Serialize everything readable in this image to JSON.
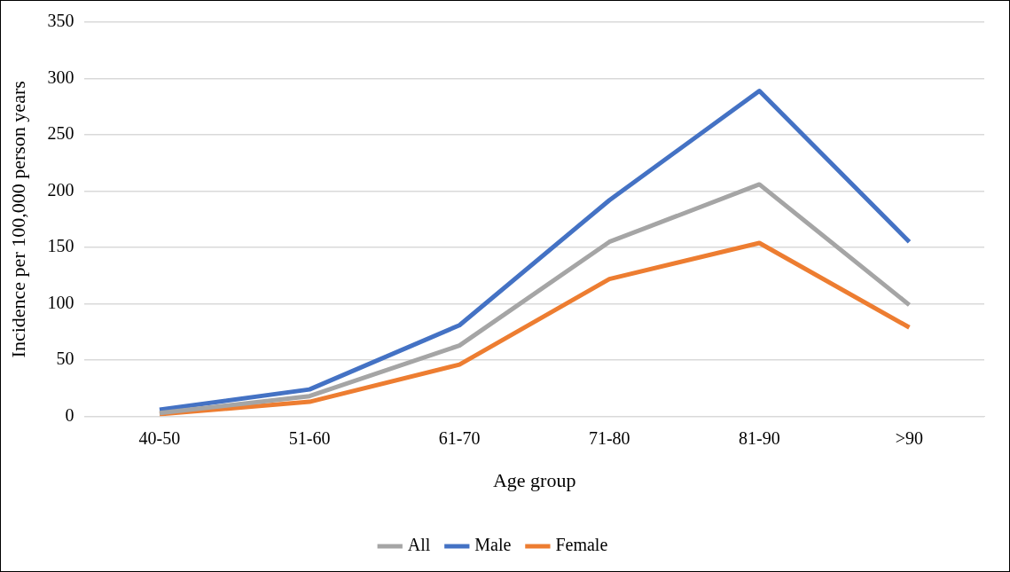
{
  "chart_data": {
    "type": "line",
    "xlabel": "Age group",
    "ylabel": "Incidence per 100,000 person years",
    "categories": [
      "40-50",
      "51-60",
      "61-70",
      "71-80",
      "81-90",
      ">90"
    ],
    "ylim": [
      0,
      350
    ],
    "yticks": [
      0,
      50,
      100,
      150,
      200,
      250,
      300,
      350
    ],
    "grid": "y",
    "legend": "bottom",
    "marker": "none",
    "line_style": "solid",
    "series": [
      {
        "name": "All",
        "color": "#a5a5a5",
        "values": [
          3,
          18,
          63,
          155,
          206,
          99
        ]
      },
      {
        "name": "Male",
        "color": "#4472c4",
        "values": [
          6,
          24,
          81,
          192,
          289,
          155
        ]
      },
      {
        "name": "Female",
        "color": "#ed7d31",
        "values": [
          2,
          13,
          46,
          122,
          154,
          79
        ]
      }
    ]
  }
}
